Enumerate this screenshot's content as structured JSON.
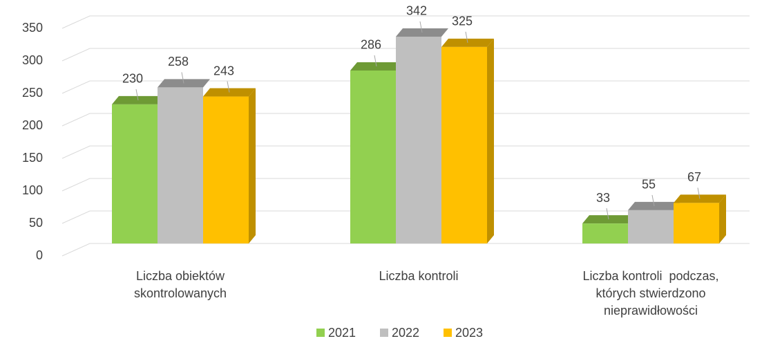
{
  "chart_data": {
    "type": "bar3d",
    "categories": [
      [
        "Liczba obiektów",
        "skontrolowanych"
      ],
      [
        "Liczba kontroli"
      ],
      [
        "Liczba kontroli  podczas,",
        "których stwierdzono",
        "nieprawidłowości"
      ]
    ],
    "series": [
      {
        "name": "2021",
        "color": "#92d050",
        "top": "#6e9a35",
        "values": [
          230,
          286,
          33
        ]
      },
      {
        "name": "2022",
        "color": "#bfbfbf",
        "top": "#8c8c8c",
        "values": [
          258,
          342,
          55
        ]
      },
      {
        "name": "2023",
        "color": "#ffc000",
        "top": "#bf9000",
        "values": [
          243,
          325,
          67
        ]
      }
    ],
    "ylim": [
      0,
      350
    ],
    "yticks": [
      0,
      50,
      100,
      150,
      200,
      250,
      300,
      350
    ],
    "grid": true,
    "legend": "bottom"
  }
}
